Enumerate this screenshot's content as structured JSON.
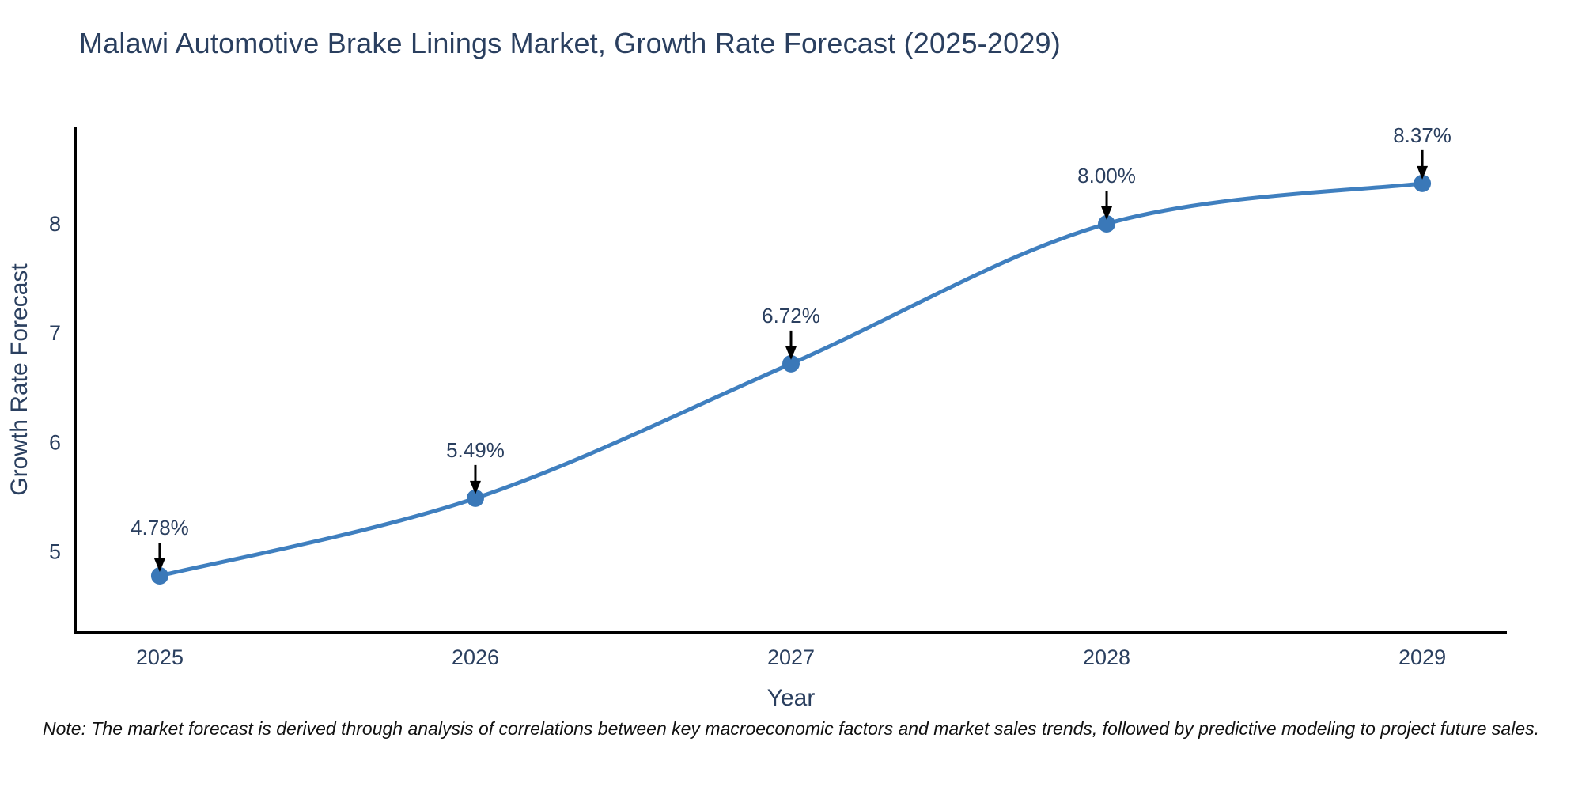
{
  "title": "Malawi Automotive Brake Linings Market, Growth Rate Forecast (2025-2029)",
  "note": "Note: The market forecast is derived through analysis of correlations between key macroeconomic factors and market sales trends, followed by predictive modeling to project future sales.",
  "chart_data": {
    "type": "line",
    "curve": "spline",
    "title": "Malawi Automotive Brake Linings Market, Growth Rate Forecast (2025-2029)",
    "xlabel": "Year",
    "ylabel": "Growth Rate Forecast",
    "x": [
      2025,
      2026,
      2027,
      2028,
      2029
    ],
    "values": [
      4.78,
      5.49,
      6.72,
      8.0,
      8.37
    ],
    "point_labels": [
      "4.78%",
      "5.49%",
      "6.72%",
      "8.00%",
      "8.37%"
    ],
    "xticks": [
      2025,
      2026,
      2027,
      2028,
      2029
    ],
    "yticks": [
      5,
      6,
      7,
      8
    ],
    "xlim": [
      2024.732,
      2029.268
    ],
    "ylim": [
      4.259,
      8.89
    ],
    "grid": false,
    "legend": false,
    "colors": {
      "line": "#3f7fbf",
      "marker": "#3a78b8",
      "axis_line": "#000000",
      "text": "#2a3f5f",
      "annotation_arrow": "#000000"
    }
  }
}
